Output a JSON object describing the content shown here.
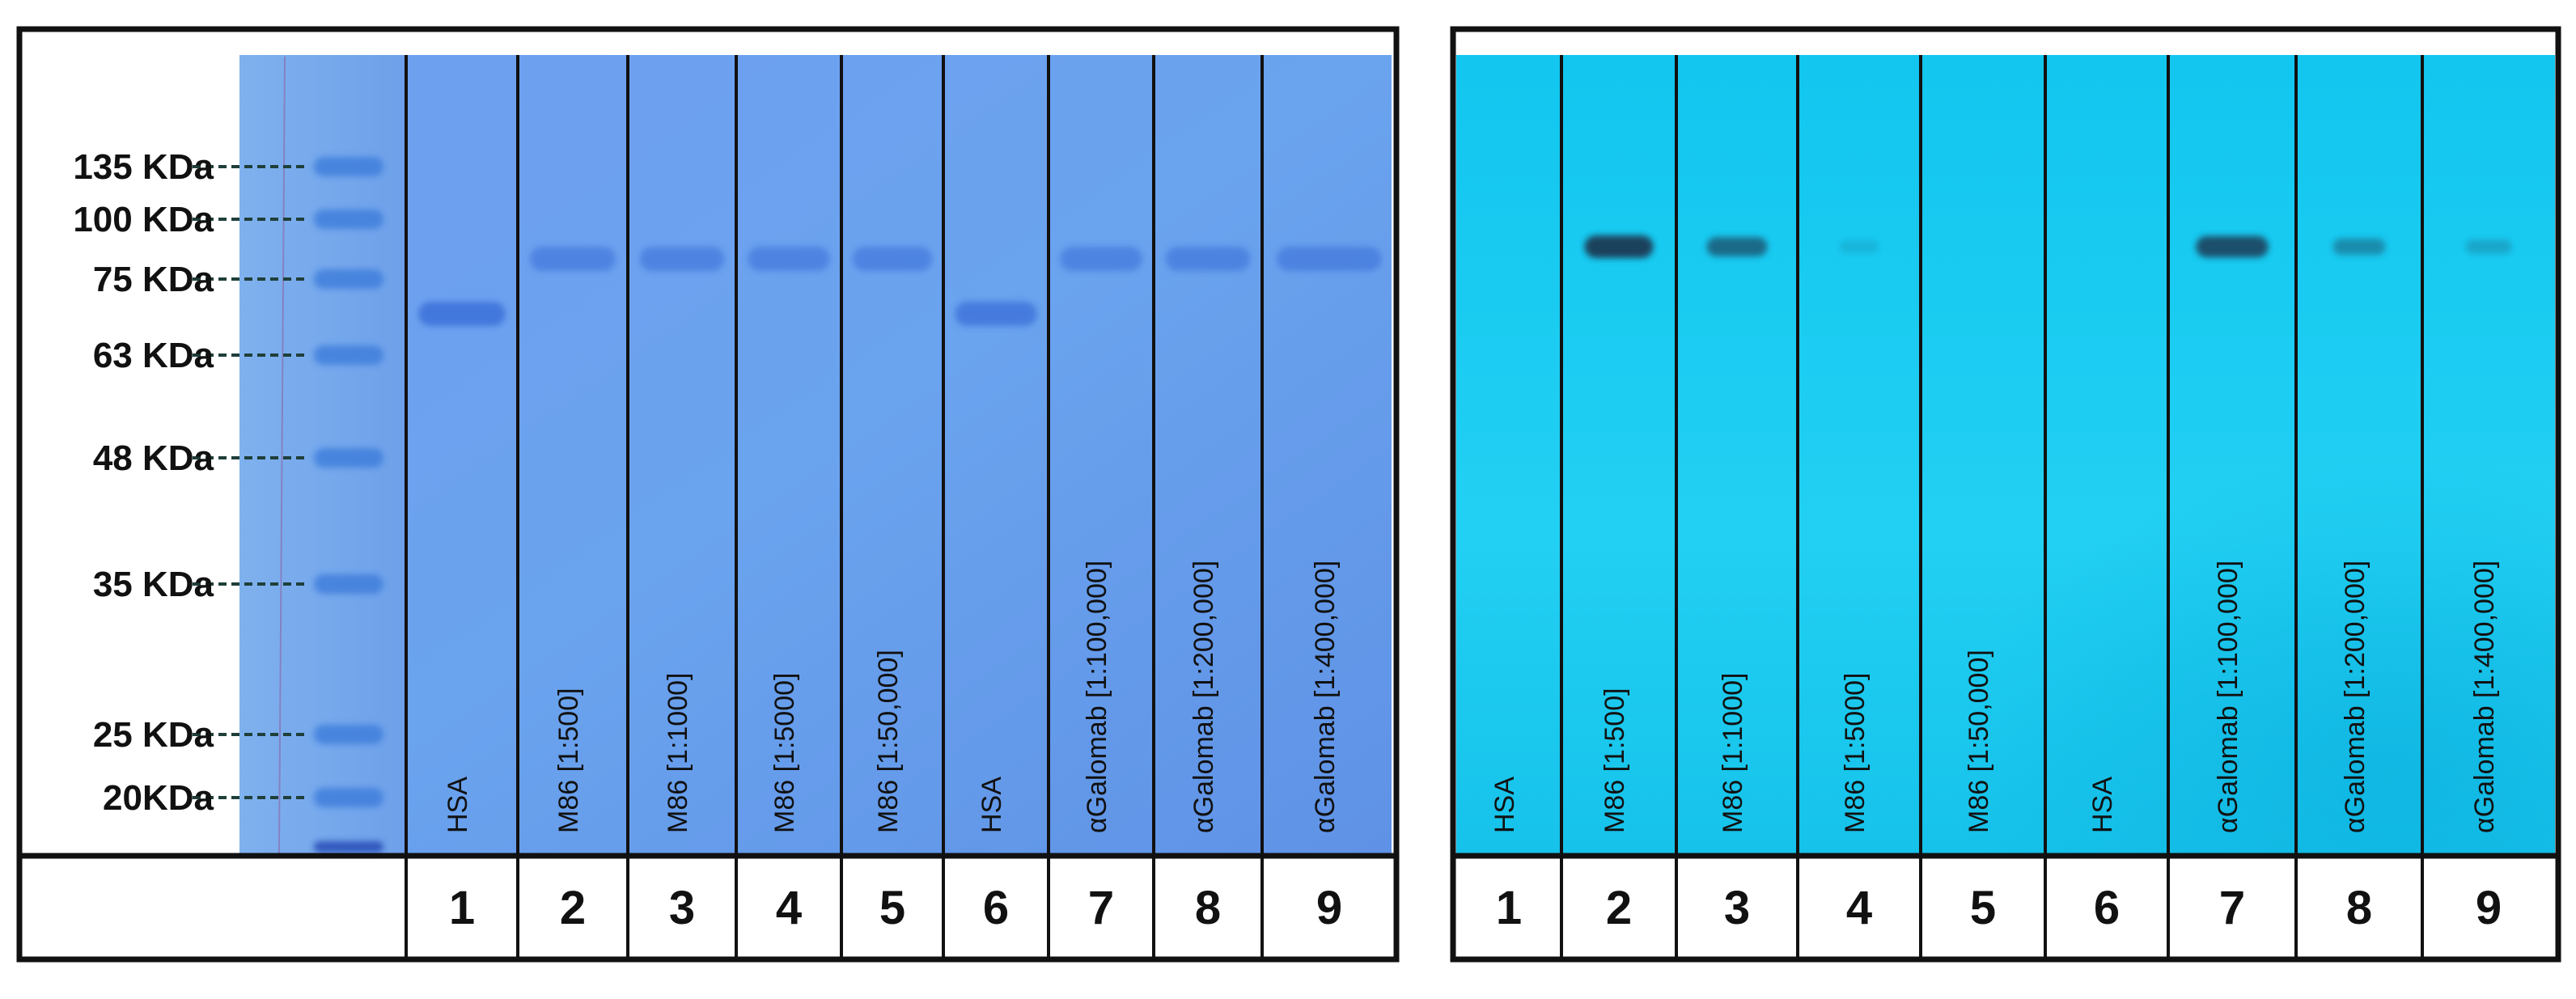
{
  "colors": {
    "gel": "#6aa0ec",
    "gel_dark": "#5a8fe0",
    "blot": "#17c9ee",
    "blot_light": "#37d8f8",
    "frame": "#111111",
    "ladder_band": "#3f7fdc",
    "ladder_tick": "#1f3f3a",
    "gel_band": "#3569d6",
    "blot_band": "#1e3b55"
  },
  "left_panel": {
    "markers": [
      {
        "label": "135 KDa",
        "kda": 135
      },
      {
        "label": "100 KDa",
        "kda": 100
      },
      {
        "label": "75 KDa",
        "kda": 75
      },
      {
        "label": "63 KDa",
        "kda": 63
      },
      {
        "label": "48 KDa",
        "kda": 48
      },
      {
        "label": "35 KDa",
        "kda": 35
      },
      {
        "label": "25 KDa",
        "kda": 25
      },
      {
        "label": "20KDa",
        "kda": 20
      }
    ],
    "lanes": [
      {
        "label": "HSA",
        "number": "1",
        "band_intensity": 1.0
      },
      {
        "label": "M86 [1:500]",
        "number": "2",
        "band_intensity": 0.7
      },
      {
        "label": "M86 [1:1000]",
        "number": "3",
        "band_intensity": 0.7
      },
      {
        "label": "M86 [1:5000]",
        "number": "4",
        "band_intensity": 0.7
      },
      {
        "label": "M86 [1:50,000]",
        "number": "5",
        "band_intensity": 0.7
      },
      {
        "label": "HSA",
        "number": "6",
        "band_intensity": 0.9
      },
      {
        "label": "αGalomab [1:100,000]",
        "number": "7",
        "band_intensity": 0.7
      },
      {
        "label": "αGalomab [1:200,000]",
        "number": "8",
        "band_intensity": 0.7
      },
      {
        "label": "αGalomab [1:400,000]",
        "number": "9",
        "band_intensity": 0.7
      }
    ]
  },
  "right_panel": {
    "lanes": [
      {
        "label": "HSA",
        "number": "1",
        "band_intensity": 0
      },
      {
        "label": "M86 [1:500]",
        "number": "2",
        "band_intensity": 1.0
      },
      {
        "label": "M86 [1:1000]",
        "number": "3",
        "band_intensity": 0.7
      },
      {
        "label": "M86 [1:5000]",
        "number": "4",
        "band_intensity": 0.15
      },
      {
        "label": "M86 [1:50,000]",
        "number": "5",
        "band_intensity": 0
      },
      {
        "label": "HSA",
        "number": "6",
        "band_intensity": 0
      },
      {
        "label": "αGalomab [1:100,000]",
        "number": "7",
        "band_intensity": 0.9
      },
      {
        "label": "αGalomab [1:200,000]",
        "number": "8",
        "band_intensity": 0.45
      },
      {
        "label": "αGalomab [1:400,000]",
        "number": "9",
        "band_intensity": 0.25
      }
    ]
  }
}
